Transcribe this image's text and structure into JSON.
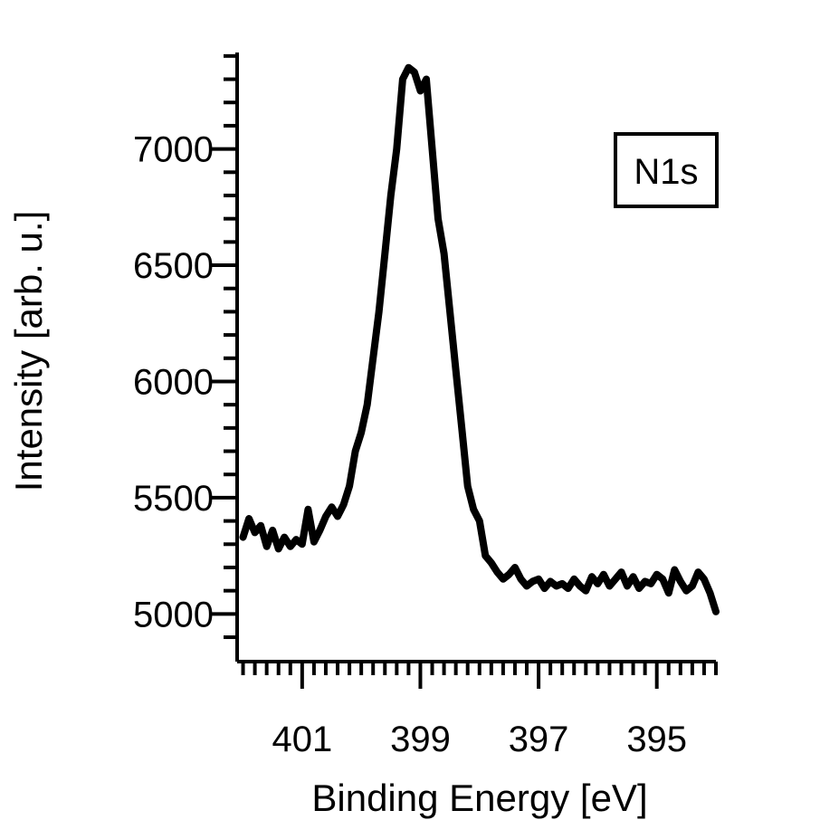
{
  "chart_data": {
    "type": "line",
    "title": "",
    "xlabel": "Binding Energy [eV]",
    "ylabel": "Intensity [arb. u.]",
    "xlim": [
      402.1,
      394.0
    ],
    "ylim": [
      4795,
      7415
    ],
    "x_reversed": true,
    "grid": false,
    "annotation": "N1s",
    "annotation_position": "top-right",
    "line_color": "#000000",
    "x_ticks": [
      401,
      399,
      397,
      395
    ],
    "x_tick_labels": [
      "401",
      "399",
      "397",
      "395"
    ],
    "y_ticks": [
      5000,
      5500,
      6000,
      6500,
      7000
    ],
    "y_tick_labels": [
      "5000",
      "5500",
      "6000",
      "6500",
      "7000"
    ],
    "series": [
      {
        "x": [
          402.0,
          401.9,
          401.8,
          401.7,
          401.6,
          401.5,
          401.4,
          401.3,
          401.2,
          401.1,
          401.0,
          400.9,
          400.8,
          400.7,
          400.6,
          400.5,
          400.4,
          400.3,
          400.2,
          400.1,
          400.0,
          399.9,
          399.8,
          399.7,
          399.6,
          399.5,
          399.4,
          399.3,
          399.2,
          399.1,
          399.0,
          398.9,
          398.8,
          398.7,
          398.6,
          398.5,
          398.4,
          398.3,
          398.2,
          398.1,
          398.0,
          397.9,
          397.8,
          397.7,
          397.6,
          397.5,
          397.4,
          397.3,
          397.2,
          397.1,
          397.0,
          396.9,
          396.8,
          396.7,
          396.6,
          396.5,
          396.4,
          396.3,
          396.2,
          396.1,
          396.0,
          395.9,
          395.8,
          395.7,
          395.6,
          395.5,
          395.4,
          395.3,
          395.2,
          395.1,
          395.0,
          394.9,
          394.8,
          394.7,
          394.6,
          394.5,
          394.4,
          394.3,
          394.2,
          394.1,
          394.0
        ],
        "values": [
          5330,
          5410,
          5350,
          5380,
          5290,
          5360,
          5280,
          5330,
          5290,
          5320,
          5300,
          5450,
          5310,
          5360,
          5420,
          5460,
          5420,
          5470,
          5550,
          5700,
          5780,
          5900,
          6100,
          6300,
          6550,
          6800,
          7000,
          7300,
          7350,
          7330,
          7250,
          7300,
          7000,
          6700,
          6550,
          6300,
          6050,
          5800,
          5550,
          5450,
          5400,
          5250,
          5220,
          5180,
          5150,
          5170,
          5200,
          5150,
          5120,
          5140,
          5150,
          5110,
          5140,
          5120,
          5130,
          5110,
          5150,
          5120,
          5100,
          5160,
          5130,
          5170,
          5120,
          5150,
          5180,
          5120,
          5160,
          5110,
          5140,
          5130,
          5170,
          5150,
          5090,
          5190,
          5140,
          5100,
          5120,
          5180,
          5150,
          5090,
          5010
        ]
      }
    ]
  }
}
